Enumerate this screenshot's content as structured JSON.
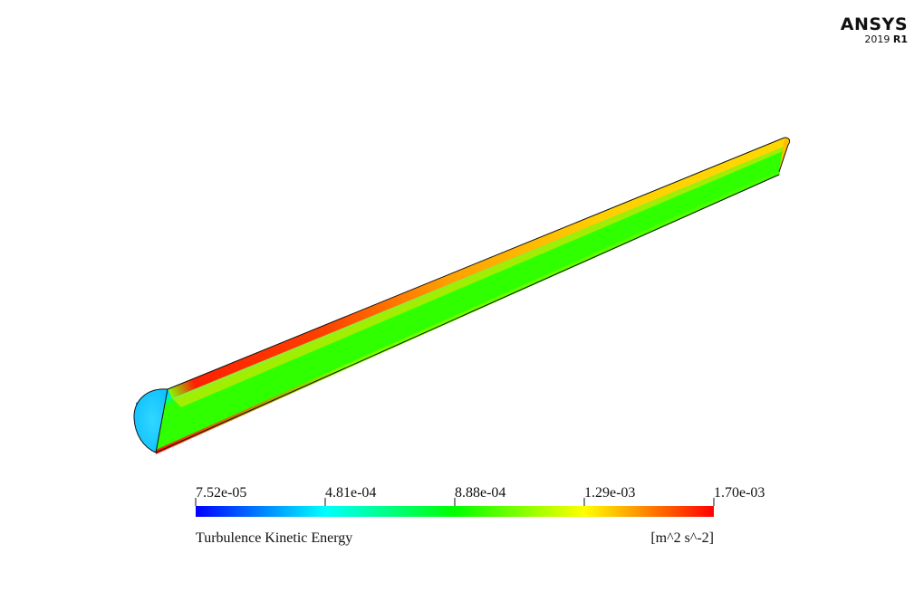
{
  "logo": {
    "name": "ANSYS",
    "version_year": "2019",
    "version_release": "R1"
  },
  "colors": {
    "scale": [
      "#0000ff",
      "#0080ff",
      "#00ffff",
      "#00ff80",
      "#00ff00",
      "#80ff00",
      "#ffff00",
      "#ff8000",
      "#ff0000"
    ],
    "outline": "#111111"
  },
  "chart_data": {
    "type": "heatmap",
    "title": "",
    "variable": "Turbulence Kinetic Energy",
    "unit": "[m^2 s^-2]",
    "range": [
      7.52e-05,
      0.0017
    ],
    "ticks": [
      "7.52e-05",
      "4.81e-04",
      "8.88e-04",
      "1.29e-03",
      "1.70e-03"
    ],
    "colormap": "rainbow (blue to red)"
  }
}
